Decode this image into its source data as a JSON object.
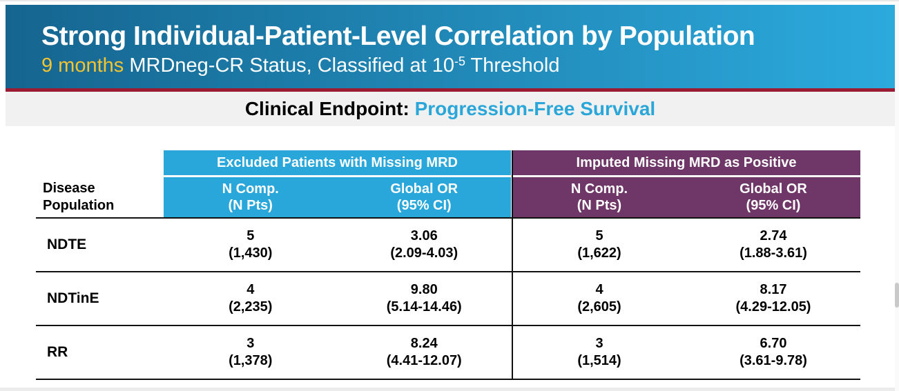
{
  "header": {
    "title": "Strong Individual-Patient-Level Correlation by Population",
    "subtitle_highlight": "9 months",
    "subtitle_mid": " MRDneg-CR Status, Classified at 10",
    "subtitle_sup": "-5",
    "subtitle_end": " Threshold"
  },
  "endpoint": {
    "label": "Clinical Endpoint: ",
    "value": "Progression-Free Survival"
  },
  "table": {
    "row_header": {
      "line1": "Disease",
      "line2": "Population"
    },
    "groups": [
      {
        "label": "Excluded Patients with Missing MRD",
        "col1_line1": "N Comp.",
        "col1_line2": "(N Pts)",
        "col2_line1": "Global OR",
        "col2_line2": "(95% CI)"
      },
      {
        "label": "Imputed Missing MRD as Positive",
        "col1_line1": "N Comp.",
        "col1_line2": "(N Pts)",
        "col2_line1": "Global OR",
        "col2_line2": "(95% CI)"
      }
    ],
    "rows": [
      {
        "population": "NDTE",
        "excluded": {
          "n_comp": "5",
          "n_pts": "(1,430)",
          "global_or": "3.06",
          "ci": "(2.09-4.03)"
        },
        "imputed": {
          "n_comp": "5",
          "n_pts": "(1,622)",
          "global_or": "2.74",
          "ci": "(1.88-3.61)"
        }
      },
      {
        "population": "NDTinE",
        "excluded": {
          "n_comp": "4",
          "n_pts": "(2,235)",
          "global_or": "9.80",
          "ci": "(5.14-14.46)"
        },
        "imputed": {
          "n_comp": "4",
          "n_pts": "(2,605)",
          "global_or": "8.17",
          "ci": "(4.29-12.05)"
        }
      },
      {
        "population": "RR",
        "excluded": {
          "n_comp": "3",
          "n_pts": "(1,378)",
          "global_or": "8.24",
          "ci": "(4.41-12.07)"
        },
        "imputed": {
          "n_comp": "3",
          "n_pts": "(1,514)",
          "global_or": "6.70",
          "ci": "(3.61-9.78)"
        }
      }
    ]
  },
  "colors": {
    "header-grad-left": "#15658f",
    "header-grad-right": "#2caadd",
    "accent-rule": "#9b1c31",
    "subtitle-highlight": "#f3c331",
    "endpoint-accent": "#2aa6d9",
    "excluded-group": "#29a7db",
    "imputed-group": "#6f3767",
    "banner-bg": "#f1f1f1"
  }
}
